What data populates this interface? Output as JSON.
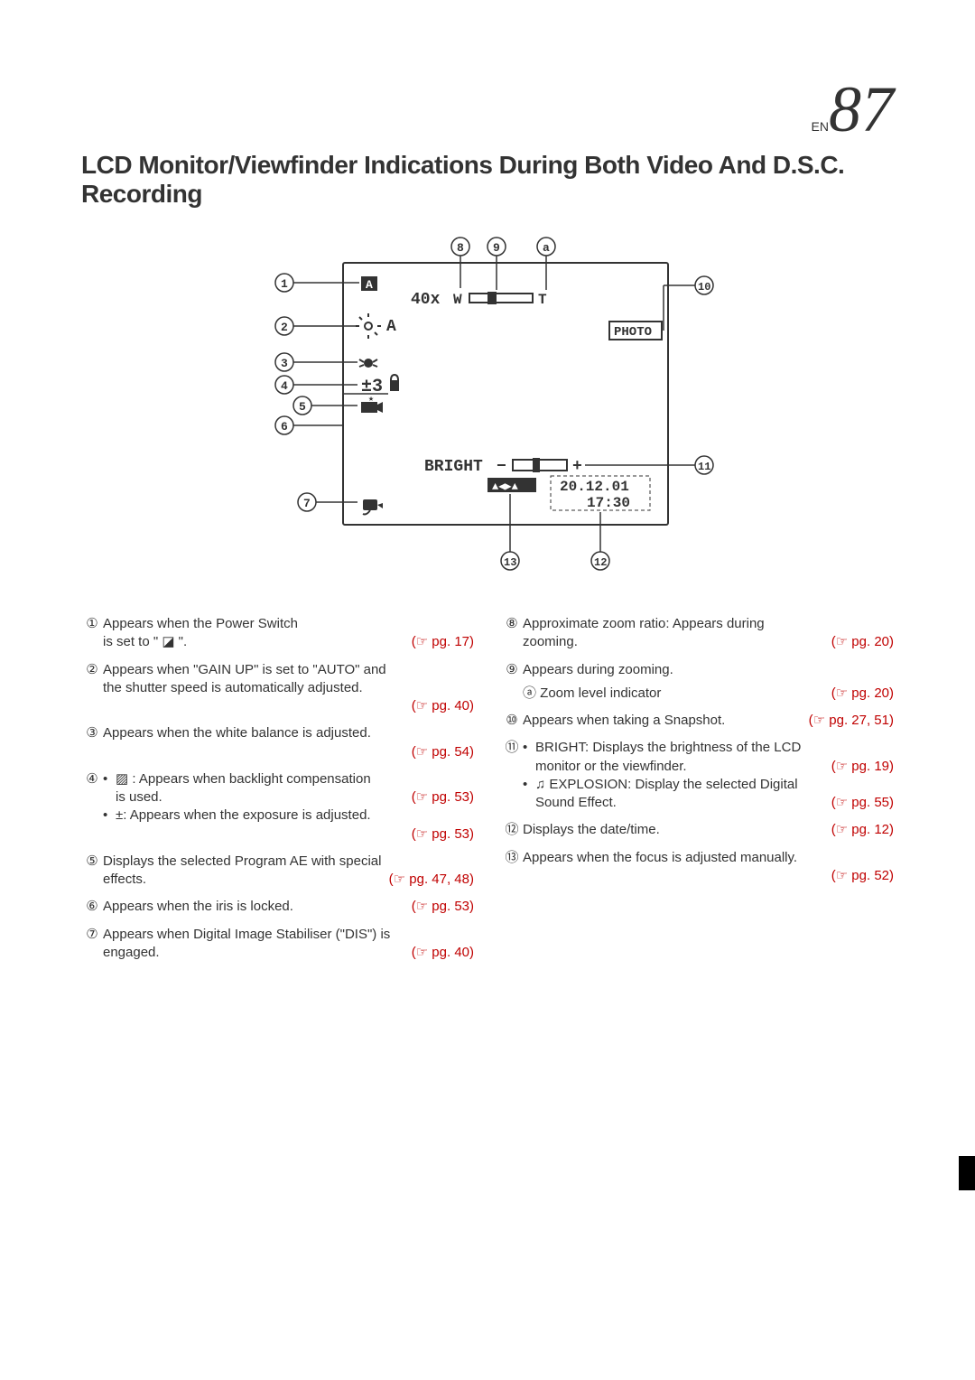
{
  "page_label_prefix": "EN",
  "page_number": "87",
  "heading": "LCD Monitor/Viewfinder Indications During Both Video And D.S.C. Recording",
  "pageref_color": "#c00000",
  "text_color": "#333333",
  "diagram": {
    "screen": {
      "zoom_text": "40x",
      "zoom_w": "W",
      "zoom_t": "T",
      "light_text": "A",
      "pm_text": "±3",
      "bright_label": "BRIGHT",
      "photo_label": "PHOTO",
      "date_text": "20.12.01",
      "time_text": "17:30"
    },
    "callouts": {
      "c1": "1",
      "c2": "2",
      "c3": "3",
      "c4": "4",
      "c5": "5",
      "c6": "6",
      "c7": "7",
      "c8": "8",
      "c9": "9",
      "ca": "a",
      "c10": "10",
      "c11": "11",
      "c12": "12",
      "c13": "13"
    }
  },
  "left_items": [
    {
      "num": "①",
      "lines": [
        {
          "text": "Appears when the Power Switch",
          "ref": ""
        },
        {
          "text": "is set to \" ◪ \".",
          "ref": "(☞ pg. 17)"
        }
      ]
    },
    {
      "num": "②",
      "lines": [
        {
          "text": "Appears when \"GAIN UP\" is set to \"AUTO\" and",
          "ref": ""
        },
        {
          "text": "the shutter speed is automatically adjusted.",
          "ref": ""
        },
        {
          "text": "",
          "ref": "(☞ pg. 40)"
        }
      ]
    },
    {
      "num": "③",
      "lines": [
        {
          "text": "Appears when the white balance is adjusted.",
          "ref": ""
        },
        {
          "text": "",
          "ref": "(☞ pg. 54)"
        }
      ]
    },
    {
      "num": "④",
      "bullets": [
        {
          "text_a": "▨ : Appears when backlight compensation",
          "text_b": "is used.",
          "ref": "(☞ pg. 53)"
        },
        {
          "text_a": "±: Appears when the exposure is adjusted.",
          "text_b": "",
          "ref": "(☞ pg. 53)"
        }
      ]
    },
    {
      "num": "⑤",
      "lines": [
        {
          "text": "Displays the selected Program AE with special",
          "ref": ""
        },
        {
          "text": "effects.",
          "ref": "(☞ pg. 47, 48)"
        }
      ]
    },
    {
      "num": "⑥",
      "lines": [
        {
          "text": "Appears when the iris is locked.",
          "ref": "(☞ pg. 53)"
        }
      ]
    },
    {
      "num": "⑦",
      "lines": [
        {
          "text": "Appears when Digital Image Stabiliser (\"DIS\") is",
          "ref": ""
        },
        {
          "text": "engaged.",
          "ref": "(☞ pg. 40)"
        }
      ]
    }
  ],
  "right_items": [
    {
      "num": "⑧",
      "lines": [
        {
          "text": "Approximate zoom ratio: Appears during",
          "ref": ""
        },
        {
          "text": "zooming.",
          "ref": "(☞ pg. 20)"
        }
      ]
    },
    {
      "num": "⑨",
      "lines": [
        {
          "text": "Appears during zooming.",
          "ref": ""
        }
      ],
      "sublines": [
        {
          "text": "ⓐ Zoom level indicator",
          "ref": "(☞ pg. 20)"
        }
      ]
    },
    {
      "num": "⑩",
      "lines": [
        {
          "text": "Appears when taking a Snapshot.",
          "ref": "(☞ pg. 27, 51)"
        }
      ]
    },
    {
      "num": "⑪",
      "bullets": [
        {
          "text_a": "BRIGHT: Displays the brightness of the LCD",
          "text_b": "monitor or the viewfinder.",
          "ref": "(☞ pg. 19)"
        },
        {
          "text_a": "♫ EXPLOSION: Display the selected Digital",
          "text_b": "Sound Effect.",
          "ref": "(☞ pg. 55)"
        }
      ]
    },
    {
      "num": "⑫",
      "lines": [
        {
          "text": "Displays the date/time.",
          "ref": "(☞ pg. 12)"
        }
      ]
    },
    {
      "num": "⑬",
      "lines": [
        {
          "text": "Appears when the focus is adjusted manually.",
          "ref": ""
        },
        {
          "text": "",
          "ref": "(☞ pg. 52)"
        }
      ]
    }
  ]
}
